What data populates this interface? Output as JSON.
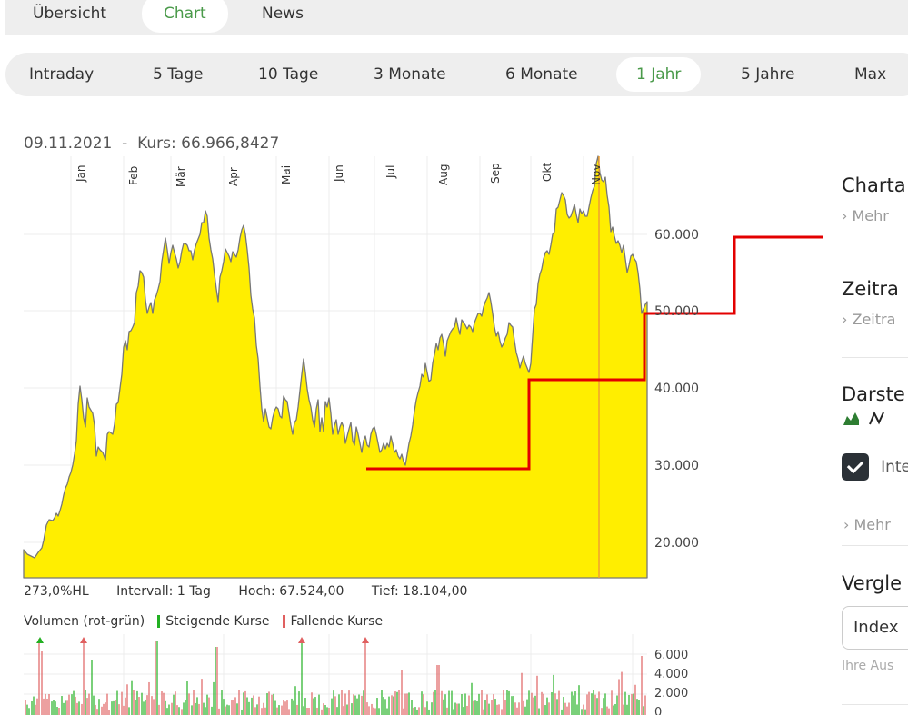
{
  "top_tabs": [
    {
      "label": "Übersicht",
      "active": false
    },
    {
      "label": "Chart",
      "active": true
    },
    {
      "label": "News",
      "active": false
    }
  ],
  "periods": [
    {
      "label": "Intraday",
      "active": false
    },
    {
      "label": "5 Tage",
      "active": false
    },
    {
      "label": "10 Tage",
      "active": false
    },
    {
      "label": "3 Monate",
      "active": false
    },
    {
      "label": "6 Monate",
      "active": false
    },
    {
      "label": "1 Jahr",
      "active": true
    },
    {
      "label": "5 Jahre",
      "active": false
    },
    {
      "label": "Max",
      "active": false
    }
  ],
  "chart_header": "09.11.2021  -  Kurs: 66.966,8427",
  "stats": {
    "hl": "273,0%HL",
    "interval": "Intervall: 1 Tag",
    "high": "Hoch:  67.524,00",
    "low": "Tief:  18.104,00"
  },
  "volume_legend": {
    "title": "Volumen (rot-grün)",
    "rising": "Steigende Kurse",
    "falling": "Fallende Kurse"
  },
  "colors": {
    "accent_green": "#4a9a4a",
    "area_fill": "#ffee00",
    "area_line": "#777777",
    "annotation_red": "#e30000",
    "cursor_orange": "#f0a030",
    "volume_up": "#22b022",
    "volume_down": "#e06060"
  },
  "side_panel": {
    "chartart_title": "Charta",
    "chartart_link": "Mehr",
    "zeitraum_title": "Zeitra",
    "zeitraum_link": "Zeitra",
    "darstellung_title": "Darste",
    "darstellung_icons": [
      "area-chart-icon",
      "line-chart-icon"
    ],
    "checkbox_label": "Inte",
    "darstellung_link": "Mehr",
    "vergleich_title": "Vergle",
    "vergleich_select": "Index",
    "vergleich_hint": "Ihre Aus"
  },
  "chart_data": {
    "type": "area",
    "title": "09.11.2021 - Kurs: 66.966,8427",
    "xlabel": "",
    "ylabel": "",
    "x_ticks": [
      "Jan",
      "Feb",
      "Mär",
      "Apr",
      "Mai",
      "Jun",
      "Jul",
      "Aug",
      "Sep",
      "Okt",
      "Nov"
    ],
    "y_ticks": [
      "20.000",
      "30.000",
      "40.000",
      "50.000",
      "60.000"
    ],
    "ylim": [
      15000,
      70000
    ],
    "grid": true,
    "series": [
      {
        "name": "Kurs",
        "x": [
          "Jan-start",
          "Jan",
          "Jan-mid",
          "Jan-end",
          "Feb",
          "Feb-mid",
          "Feb-end",
          "Mär",
          "Mär-mid",
          "Mär-end",
          "Apr",
          "Apr-mid",
          "Apr-end",
          "Mai",
          "Mai-mid",
          "Mai-end",
          "Jun",
          "Jun-mid",
          "Jun-end",
          "Jul",
          "Jul-mid",
          "Jul-end",
          "Aug",
          "Aug-mid",
          "Aug-end",
          "Sep",
          "Sep-mid",
          "Sep-end",
          "Okt",
          "Okt-mid",
          "Okt-end",
          "Nov",
          "Nov-mid",
          "Nov-end"
        ],
        "values": [
          18500,
          23000,
          29000,
          39500,
          33000,
          36000,
          48500,
          46500,
          58500,
          53000,
          57500,
          63000,
          53000,
          56000,
          57000,
          43000,
          36000,
          37000,
          32500,
          35000,
          33000,
          30500,
          45000,
          49000,
          47000,
          54000,
          44000,
          44500,
          57000,
          63000,
          62000,
          67500,
          58000,
          51000
        ]
      }
    ],
    "annotations": {
      "red_step_line": [
        {
          "from": "Jul",
          "to": "Sep-end",
          "value": 30000
        },
        {
          "from": "Sep-end",
          "to": "Nov-end",
          "value": 41500
        },
        {
          "from": "Nov-end",
          "to": "beyond",
          "value": 50000
        },
        {
          "from": "beyond",
          "to": "panel",
          "value": 60000
        }
      ],
      "cursor": {
        "date": "09.11.2021",
        "value": 66966.8427
      }
    },
    "volume": {
      "type": "bar",
      "y_ticks": [
        "0",
        "2.000",
        "4.000",
        "6.000"
      ],
      "legend": [
        "Steigende Kurse",
        "Fallende Kurse"
      ]
    },
    "stats": {
      "range_pct": "273,0%HL",
      "interval": "1 Tag",
      "high": 67524.0,
      "low": 18104.0
    }
  }
}
